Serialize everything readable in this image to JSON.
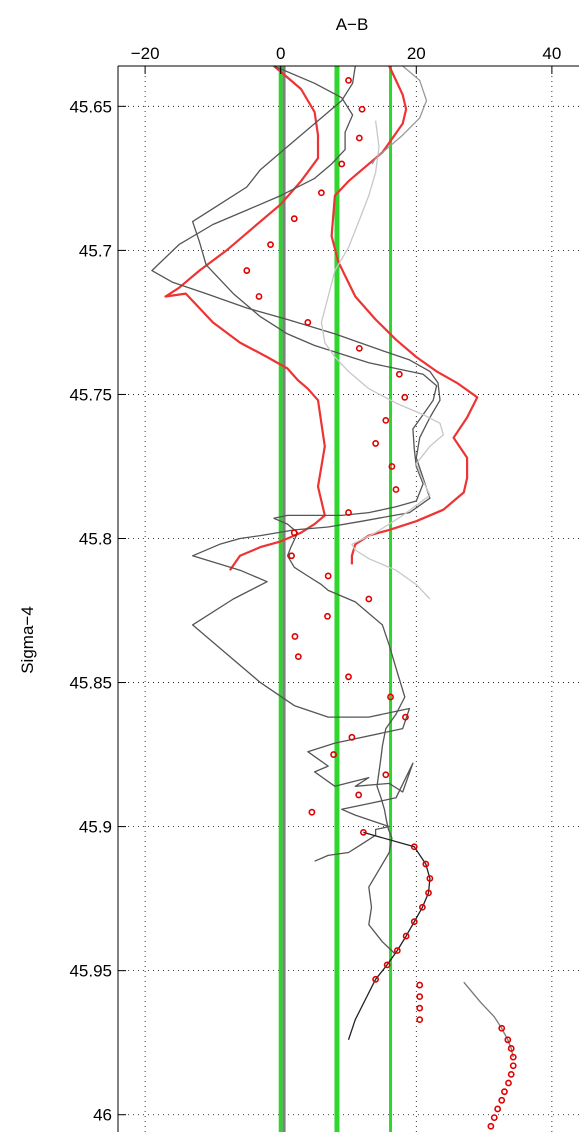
{
  "chart_data": {
    "type": "scatter",
    "xlabel": "A−B",
    "ylabel": "Sigma−4",
    "xlim": [
      -24,
      44
    ],
    "ylim": [
      46.006,
      45.636
    ],
    "y_inverted": true,
    "x_axis_position": "top",
    "x_ticks": [
      -20,
      0,
      20,
      40
    ],
    "x_tick_labels": [
      "−20",
      "0",
      "20",
      "40"
    ],
    "y_ticks": [
      45.65,
      45.7,
      45.75,
      45.8,
      45.85,
      45.9,
      45.95,
      46.0
    ],
    "y_tick_labels": [
      "45.65",
      "45.7",
      "45.75",
      "45.8",
      "45.85",
      "45.9",
      "45.95",
      "46"
    ],
    "grid": "dotted",
    "vertical_lines": [
      {
        "x": 0,
        "color": "#2ed62e",
        "width": 4
      },
      {
        "x": 0.5,
        "color": "#808080",
        "width": 3
      },
      {
        "x": 8.3,
        "color": "#2ed62e",
        "width": 5
      },
      {
        "x": 16.2,
        "color": "#2ed62e",
        "width": 3
      }
    ],
    "series": [
      {
        "style": "circles",
        "color": "#e00000",
        "x": [
          10,
          12,
          11.6,
          9,
          6,
          2,
          -1.5,
          -5,
          -3.2,
          4,
          11.6,
          17.5,
          18.3,
          15.5,
          14,
          16.4,
          17,
          10,
          2,
          1.6,
          7,
          13,
          2.1,
          2.6,
          6.9,
          10,
          16.2,
          18.4,
          10.5,
          7.8,
          15.5,
          11.5,
          4.6,
          12.2,
          19.7,
          21.4,
          22,
          21.8,
          20.9,
          19.7,
          18.5,
          17.2,
          15.7,
          14,
          20.5,
          20.5,
          20.5,
          20.5,
          32.6,
          33.5,
          34,
          34.3,
          34.3,
          34,
          33.6,
          33,
          32.6,
          32,
          31.5,
          31
        ],
        "y": [
          45.641,
          45.651,
          45.661,
          45.67,
          45.68,
          45.689,
          45.698,
          45.707,
          45.716,
          45.725,
          45.734,
          45.743,
          45.751,
          45.759,
          45.767,
          45.775,
          45.783,
          45.791,
          45.798,
          45.806,
          45.813,
          45.821,
          45.834,
          45.841,
          45.827,
          45.848,
          45.855,
          45.862,
          45.869,
          45.875,
          45.882,
          45.889,
          45.895,
          45.902,
          45.907,
          45.913,
          45.918,
          45.923,
          45.928,
          45.933,
          45.938,
          45.943,
          45.948,
          45.953,
          45.955,
          45.959,
          45.963,
          45.967,
          45.97,
          45.974,
          45.977,
          45.98,
          45.983,
          45.986,
          45.989,
          45.992,
          45.995,
          45.998,
          46.001,
          46.004
        ]
      },
      {
        "style": "line",
        "color": "#ee3333",
        "width": 2.2,
        "x": [
          -1,
          1,
          3,
          5,
          5.5,
          5.5,
          3,
          0,
          -4,
          -8,
          -12,
          -15,
          -17,
          -14,
          -10,
          -6,
          -2,
          1,
          2.5,
          4,
          5.5,
          6,
          6.5,
          6,
          5.5,
          6,
          6.5,
          5,
          3,
          0,
          -3,
          -6,
          -7.5
        ],
        "y": [
          45.636,
          45.64,
          45.644,
          45.652,
          45.66,
          45.668,
          45.676,
          45.684,
          45.692,
          45.7,
          45.707,
          45.713,
          45.716,
          45.715,
          45.725,
          45.732,
          45.737,
          45.741,
          45.745,
          45.748,
          45.752,
          45.76,
          45.768,
          45.775,
          45.782,
          45.787,
          45.792,
          45.795,
          45.798,
          45.801,
          45.803,
          45.806,
          45.811
        ]
      },
      {
        "style": "line",
        "color": "#ee3333",
        "width": 2.2,
        "x": [
          16,
          17,
          18,
          18.5,
          18,
          16.5,
          15,
          12.5,
          10,
          8,
          7.5,
          8.5,
          11,
          14,
          17,
          20,
          23,
          26,
          29,
          27.5,
          25.5,
          27.5,
          27.5,
          27,
          24,
          20,
          16,
          13,
          11,
          10.5,
          10.5
        ],
        "y": [
          45.636,
          45.641,
          45.646,
          45.651,
          45.656,
          45.661,
          45.666,
          45.671,
          45.676,
          45.681,
          45.695,
          45.704,
          45.716,
          45.724,
          45.731,
          45.737,
          45.742,
          45.746,
          45.751,
          45.758,
          45.765,
          45.772,
          45.779,
          45.784,
          45.79,
          45.794,
          45.797,
          45.799,
          45.802,
          45.806,
          45.809
        ]
      },
      {
        "style": "line",
        "color": "#555555",
        "width": 1.3,
        "x": [
          -1,
          5,
          9,
          10.6,
          9.5,
          9.5,
          7.5,
          5,
          0,
          -5,
          -10,
          -15,
          -19,
          -16,
          -11,
          -5,
          1,
          8,
          14,
          19,
          22,
          23.2,
          23.5,
          22,
          20.5,
          20,
          21,
          22,
          19,
          12,
          7,
          2,
          -3,
          -6,
          -9,
          -13,
          -6,
          -2,
          -7,
          -13,
          -8,
          -3,
          2,
          7,
          13,
          19,
          18,
          8,
          4,
          7,
          5,
          8,
          13,
          11,
          16,
          18,
          19.5,
          17,
          13,
          9,
          11,
          16,
          14,
          14,
          12,
          10,
          7,
          5
        ],
        "y": [
          45.636,
          45.642,
          45.647,
          45.653,
          45.659,
          45.665,
          45.67,
          45.675,
          45.681,
          45.686,
          45.691,
          45.698,
          45.707,
          45.711,
          45.715,
          45.72,
          45.724,
          45.729,
          45.734,
          45.738,
          45.742,
          45.746,
          45.752,
          45.758,
          45.765,
          45.772,
          45.779,
          45.786,
          45.791,
          45.794,
          45.796,
          45.797,
          45.799,
          45.8,
          45.802,
          45.806,
          45.811,
          45.815,
          45.821,
          45.83,
          45.84,
          45.85,
          45.858,
          45.862,
          45.862,
          45.859,
          45.866,
          45.871,
          45.874,
          45.879,
          45.881,
          45.886,
          45.883,
          45.886,
          45.885,
          45.888,
          45.878,
          45.89,
          45.892,
          45.894,
          45.896,
          45.9,
          45.901,
          45.903,
          45.906,
          45.909,
          45.91,
          45.912
        ]
      },
      {
        "style": "line",
        "color": "#555555",
        "width": 1.3,
        "x": [
          11,
          10.6,
          9,
          6,
          3,
          0,
          -3,
          -5,
          -9,
          -13,
          -12,
          -11,
          -7,
          -3,
          1,
          5,
          9,
          13,
          17,
          21,
          23,
          22.5,
          21,
          19.5,
          19.7,
          20,
          21,
          20,
          17,
          13,
          9,
          5,
          1,
          -1,
          1,
          2.5,
          1.5,
          1,
          2,
          4,
          6,
          7,
          9,
          11,
          13,
          15,
          16,
          17,
          18.3,
          17,
          15.5,
          15,
          14.8,
          14.5,
          14.2,
          14.8,
          15.3,
          15.6,
          15.9,
          16.4,
          16,
          15,
          14,
          13,
          13.4,
          13,
          15,
          16.8
        ],
        "y": [
          45.636,
          45.642,
          45.648,
          45.654,
          45.66,
          45.666,
          45.672,
          45.678,
          45.684,
          45.69,
          45.697,
          45.705,
          45.715,
          45.723,
          45.729,
          45.733,
          45.736,
          45.739,
          45.741,
          45.743,
          45.747,
          45.752,
          45.757,
          45.762,
          45.769,
          45.775,
          45.781,
          45.787,
          45.789,
          45.791,
          45.792,
          45.792,
          45.792,
          45.793,
          45.795,
          45.798,
          45.803,
          45.806,
          45.81,
          45.813,
          45.816,
          45.818,
          45.82,
          45.822,
          45.826,
          45.83,
          45.837,
          45.845,
          45.855,
          45.861,
          45.866,
          45.872,
          45.876,
          45.881,
          45.886,
          45.89,
          45.894,
          45.898,
          45.901,
          45.904,
          45.909,
          45.913,
          45.917,
          45.921,
          45.928,
          45.934,
          45.94,
          45.944
        ]
      },
      {
        "style": "line",
        "color": "#222222",
        "width": 1.3,
        "x": [
          12.2,
          19.7,
          21.4,
          22,
          21.8,
          20.9,
          19.7,
          18.5,
          17.2,
          15.7,
          14,
          12.5,
          11,
          10
        ],
        "y": [
          45.902,
          45.907,
          45.913,
          45.918,
          45.923,
          45.928,
          45.933,
          45.938,
          45.943,
          45.948,
          45.953,
          45.96,
          45.967,
          45.974
        ]
      },
      {
        "style": "line",
        "color": "#777777",
        "width": 1.3,
        "x": [
          27,
          29.5,
          31.5,
          32.6,
          33.5,
          34,
          34.3
        ],
        "y": [
          45.954,
          45.961,
          45.966,
          45.97,
          45.974,
          45.977,
          45.98
        ]
      },
      {
        "style": "line",
        "color": "#c8c8c8",
        "width": 1.3,
        "x": [
          14,
          14.5,
          14,
          13,
          11.5,
          10,
          8,
          7,
          6,
          6.5,
          8,
          10,
          13,
          17,
          21,
          23.5,
          24,
          22,
          20,
          21,
          22,
          18,
          14,
          10.5,
          11,
          13,
          17,
          20,
          22
        ],
        "y": [
          45.655,
          45.664,
          45.673,
          45.681,
          45.69,
          45.699,
          45.707,
          45.716,
          45.725,
          45.732,
          45.737,
          45.742,
          45.748,
          45.753,
          45.757,
          45.76,
          45.764,
          45.768,
          45.774,
          45.78,
          45.785,
          45.792,
          45.798,
          45.802,
          45.804,
          45.807,
          45.811,
          45.816,
          45.821
        ]
      },
      {
        "style": "line",
        "color": "#999999",
        "width": 1.3,
        "x": [
          18,
          20.5,
          21.5,
          20.5,
          18,
          15.5,
          14,
          13.5
        ],
        "y": [
          45.636,
          45.641,
          45.648,
          45.654,
          45.66,
          45.665,
          45.668,
          45.67
        ]
      }
    ]
  }
}
